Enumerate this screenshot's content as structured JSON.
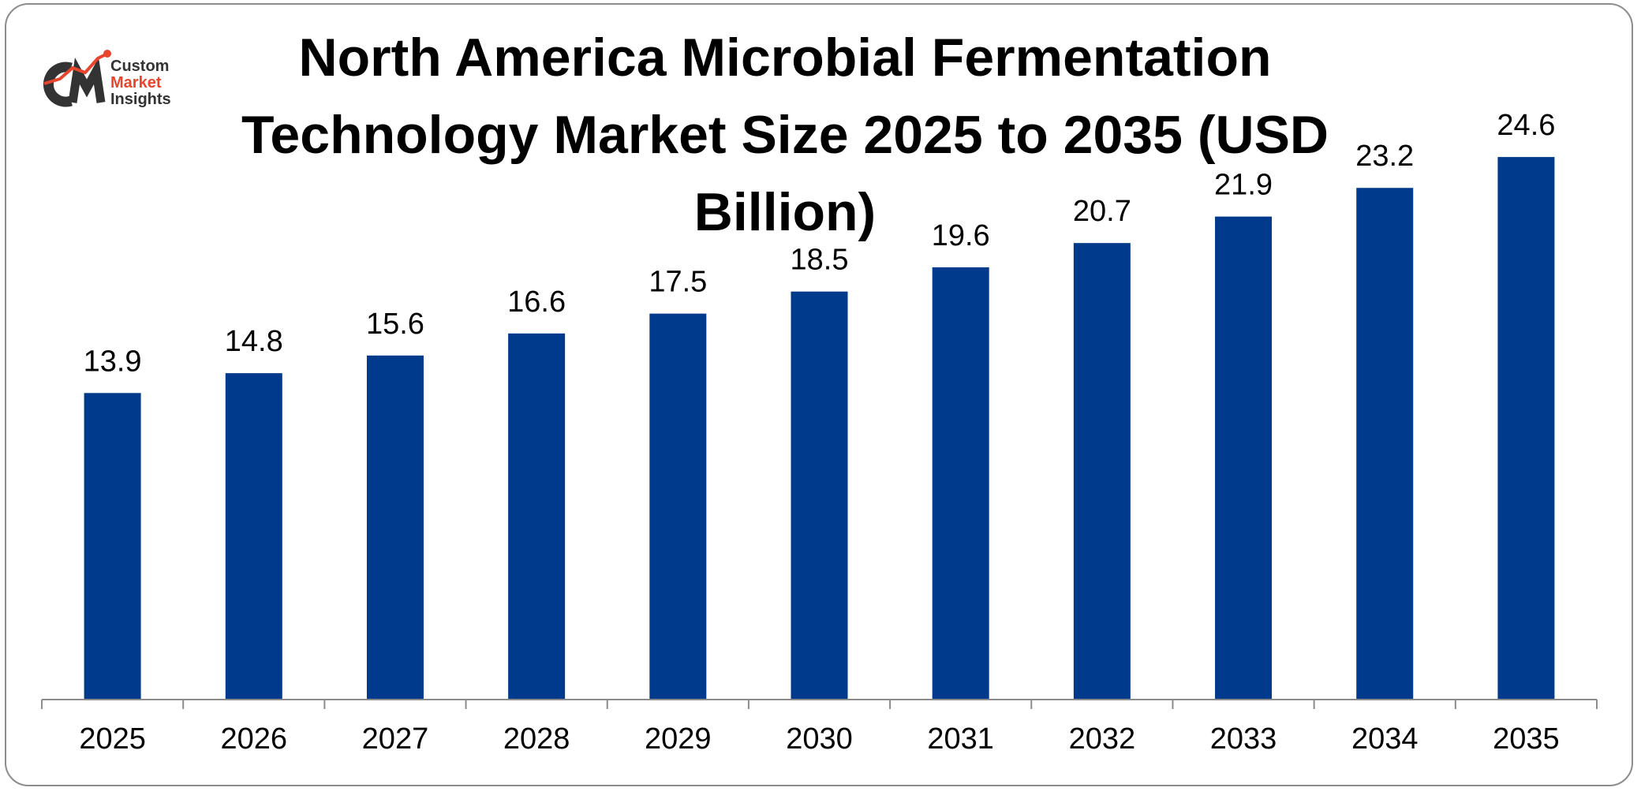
{
  "brand": {
    "logo_letters": "CMI",
    "line1": "Custom",
    "line2": "Market",
    "line3": "Insights"
  },
  "colors": {
    "bar": "#003a8c",
    "axis": "#8c8c8c",
    "brand_accent": "#e8452c",
    "brand_dark": "#333333"
  },
  "chart_data": {
    "type": "bar",
    "title": "North America Microbial Fermentation Technology Market Size 2025 to 2035 (USD Billion)",
    "xlabel": "",
    "ylabel": "",
    "categories": [
      "2025",
      "2026",
      "2027",
      "2028",
      "2029",
      "2030",
      "2031",
      "2032",
      "2033",
      "2034",
      "2035"
    ],
    "values": [
      13.9,
      14.8,
      15.6,
      16.6,
      17.5,
      18.5,
      19.6,
      20.7,
      21.9,
      23.2,
      24.6
    ],
    "data_labels": [
      "13.9",
      "14.8",
      "15.6",
      "16.6",
      "17.5",
      "18.5",
      "19.6",
      "20.7",
      "21.9",
      "23.2",
      "24.6"
    ],
    "ylim": [
      0,
      27.5
    ],
    "grid": false,
    "legend": "none"
  }
}
